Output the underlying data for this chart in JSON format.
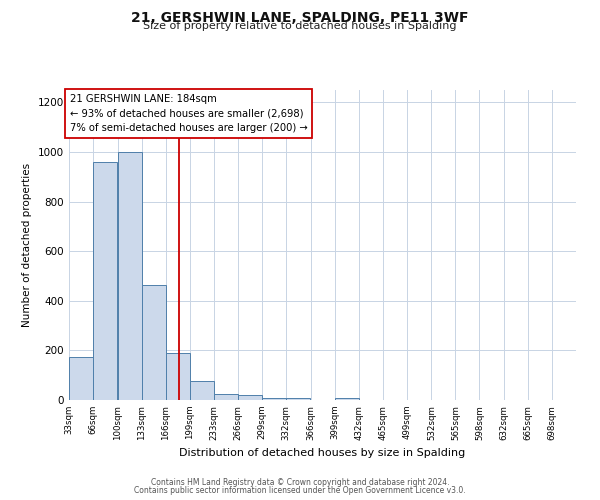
{
  "title": "21, GERSHWIN LANE, SPALDING, PE11 3WF",
  "subtitle": "Size of property relative to detached houses in Spalding",
  "xlabel": "Distribution of detached houses by size in Spalding",
  "ylabel": "Number of detached properties",
  "bin_edges": [
    33,
    66,
    100,
    133,
    166,
    199,
    233,
    266,
    299,
    332,
    366,
    399,
    432,
    465,
    499,
    532,
    565,
    598,
    632,
    665,
    698
  ],
  "bar_heights": [
    175,
    960,
    1000,
    465,
    190,
    75,
    25,
    20,
    10,
    10,
    0,
    10,
    0,
    0,
    0,
    0,
    0,
    0,
    0,
    0
  ],
  "bar_color": "#ccd9eb",
  "bar_edgecolor": "#4f7faa",
  "property_size": 184,
  "red_line_color": "#cc0000",
  "annotation_line1": "21 GERSHWIN LANE: 184sqm",
  "annotation_line2": "← 93% of detached houses are smaller (2,698)",
  "annotation_line3": "7% of semi-detached houses are larger (200) →",
  "annotation_box_edgecolor": "#cc0000",
  "ylim": [
    0,
    1250
  ],
  "yticks": [
    0,
    200,
    400,
    600,
    800,
    1000,
    1200
  ],
  "background_color": "#ffffff",
  "grid_color": "#c8d4e4",
  "footer_line1": "Contains HM Land Registry data © Crown copyright and database right 2024.",
  "footer_line2": "Contains public sector information licensed under the Open Government Licence v3.0."
}
